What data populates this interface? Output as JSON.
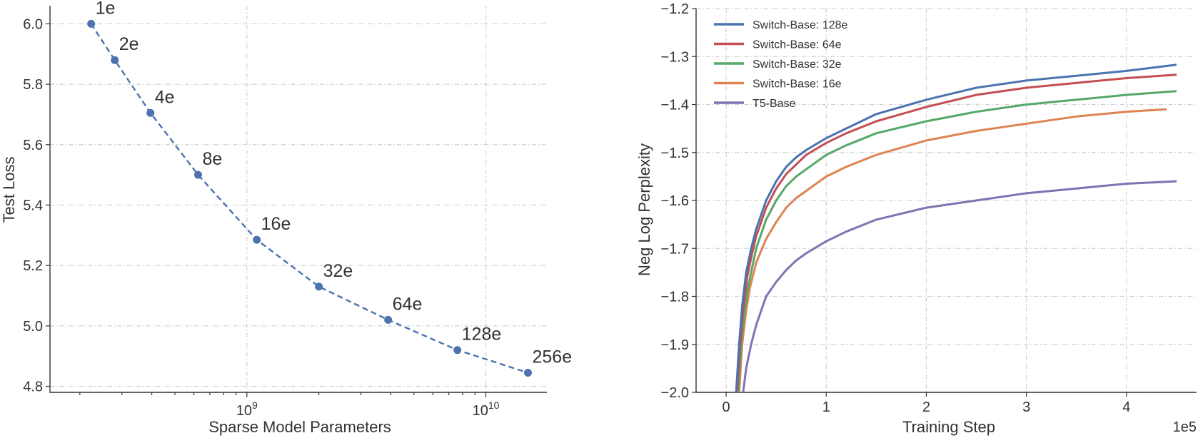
{
  "chart_data": [
    {
      "type": "line",
      "marker": "circle",
      "linestyle": "dashed",
      "color": "#4c72b0",
      "x_scale": "log",
      "xlabel": "Sparse Model Parameters",
      "ylabel": "Test Loss",
      "xlim": [
        150000000,
        18000000000
      ],
      "ylim": [
        4.78,
        6.06
      ],
      "x_ticks": [
        {
          "value": 1000000000,
          "base": "10",
          "exp": "9"
        },
        {
          "value": 10000000000,
          "base": "10",
          "exp": "10"
        }
      ],
      "y_ticks": [
        4.8,
        5.0,
        5.2,
        5.4,
        5.6,
        5.8,
        6.0
      ],
      "y_tick_labels": [
        "4.8",
        "5.0",
        "5.2",
        "5.4",
        "5.6",
        "5.8",
        "6.0"
      ],
      "grid": true,
      "points": [
        {
          "label": "1e",
          "x": 223000000,
          "y": 6.0
        },
        {
          "label": "2e",
          "x": 280000000,
          "y": 5.88
        },
        {
          "label": "4e",
          "x": 395000000,
          "y": 5.705
        },
        {
          "label": "8e",
          "x": 625000000,
          "y": 5.5
        },
        {
          "label": "16e",
          "x": 1100000000,
          "y": 5.285
        },
        {
          "label": "32e",
          "x": 2000000000,
          "y": 5.13
        },
        {
          "label": "64e",
          "x": 3900000000,
          "y": 5.02
        },
        {
          "label": "128e",
          "x": 7600000000,
          "y": 4.92
        },
        {
          "label": "256e",
          "x": 15000000000,
          "y": 4.845
        }
      ]
    },
    {
      "type": "line",
      "xlabel": "Training Step",
      "x_multiplier_label": "1e5",
      "ylabel": "Neg Log Perplexity",
      "xlim": [
        -0.3,
        4.7
      ],
      "ylim": [
        -2.0,
        -1.2
      ],
      "x_ticks": [
        0,
        1,
        2,
        3,
        4
      ],
      "x_tick_labels": [
        "0",
        "1",
        "2",
        "3",
        "4"
      ],
      "y_ticks": [
        -2.0,
        -1.9,
        -1.8,
        -1.7,
        -1.6,
        -1.5,
        -1.4,
        -1.3,
        -1.2
      ],
      "y_tick_labels": [
        "−2.0",
        "−1.9",
        "−1.8",
        "−1.7",
        "−1.6",
        "−1.5",
        "−1.4",
        "−1.3",
        "−1.2"
      ],
      "grid": true,
      "legend_position": "top-left",
      "series": [
        {
          "name": "Switch-Base: 128e",
          "color": "#4c72b0",
          "x": [
            0.1,
            0.13,
            0.16,
            0.2,
            0.25,
            0.3,
            0.4,
            0.5,
            0.6,
            0.7,
            0.8,
            1.0,
            1.2,
            1.5,
            2.0,
            2.5,
            3.0,
            3.5,
            4.0,
            4.5
          ],
          "y": [
            -2.0,
            -1.9,
            -1.82,
            -1.75,
            -1.7,
            -1.66,
            -1.6,
            -1.56,
            -1.53,
            -1.51,
            -1.495,
            -1.47,
            -1.45,
            -1.42,
            -1.39,
            -1.365,
            -1.35,
            -1.34,
            -1.33,
            -1.317
          ]
        },
        {
          "name": "Switch-Base: 64e",
          "color": "#c44e52",
          "x": [
            0.11,
            0.14,
            0.17,
            0.21,
            0.26,
            0.3,
            0.4,
            0.5,
            0.6,
            0.7,
            0.8,
            1.0,
            1.2,
            1.5,
            2.0,
            2.5,
            3.0,
            3.5,
            4.0,
            4.5
          ],
          "y": [
            -2.0,
            -1.9,
            -1.83,
            -1.76,
            -1.71,
            -1.675,
            -1.615,
            -1.575,
            -1.545,
            -1.525,
            -1.505,
            -1.48,
            -1.46,
            -1.435,
            -1.405,
            -1.38,
            -1.365,
            -1.355,
            -1.345,
            -1.338
          ]
        },
        {
          "name": "Switch-Base: 32e",
          "color": "#55a868",
          "x": [
            0.12,
            0.15,
            0.18,
            0.22,
            0.27,
            0.3,
            0.4,
            0.5,
            0.6,
            0.7,
            0.8,
            1.0,
            1.2,
            1.5,
            2.0,
            2.5,
            3.0,
            3.5,
            4.0,
            4.5
          ],
          "y": [
            -2.0,
            -1.9,
            -1.84,
            -1.78,
            -1.73,
            -1.7,
            -1.64,
            -1.6,
            -1.57,
            -1.55,
            -1.535,
            -1.505,
            -1.485,
            -1.46,
            -1.435,
            -1.415,
            -1.4,
            -1.39,
            -1.38,
            -1.372
          ]
        },
        {
          "name": "Switch-Base: 16e",
          "color": "#dd8452",
          "x": [
            0.13,
            0.16,
            0.2,
            0.24,
            0.3,
            0.4,
            0.5,
            0.6,
            0.7,
            0.8,
            1.0,
            1.2,
            1.5,
            2.0,
            2.5,
            3.0,
            3.5,
            4.0,
            4.4
          ],
          "y": [
            -2.0,
            -1.9,
            -1.83,
            -1.78,
            -1.73,
            -1.68,
            -1.645,
            -1.615,
            -1.595,
            -1.58,
            -1.55,
            -1.53,
            -1.505,
            -1.475,
            -1.455,
            -1.44,
            -1.425,
            -1.415,
            -1.41
          ]
        },
        {
          "name": "T5-Base",
          "color": "#8172b2",
          "x": [
            0.17,
            0.2,
            0.25,
            0.3,
            0.4,
            0.5,
            0.6,
            0.7,
            0.8,
            1.0,
            1.2,
            1.5,
            2.0,
            2.5,
            3.0,
            3.5,
            4.0,
            4.5
          ],
          "y": [
            -2.0,
            -1.95,
            -1.9,
            -1.86,
            -1.8,
            -1.77,
            -1.745,
            -1.725,
            -1.71,
            -1.685,
            -1.665,
            -1.64,
            -1.615,
            -1.6,
            -1.585,
            -1.575,
            -1.565,
            -1.56
          ]
        }
      ]
    }
  ]
}
